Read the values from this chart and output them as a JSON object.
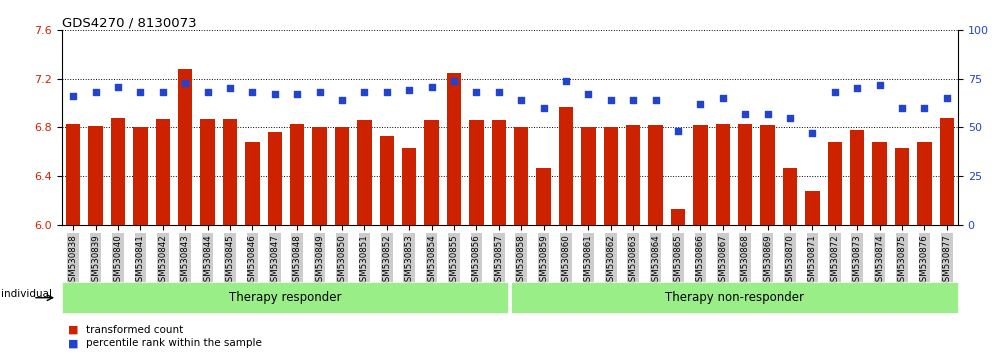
{
  "title": "GDS4270 / 8130073",
  "samples": [
    "GSM530838",
    "GSM530839",
    "GSM530840",
    "GSM530841",
    "GSM530842",
    "GSM530843",
    "GSM530844",
    "GSM530845",
    "GSM530846",
    "GSM530847",
    "GSM530848",
    "GSM530849",
    "GSM530850",
    "GSM530851",
    "GSM530852",
    "GSM530853",
    "GSM530854",
    "GSM530855",
    "GSM530856",
    "GSM530857",
    "GSM530858",
    "GSM530859",
    "GSM530860",
    "GSM530861",
    "GSM530862",
    "GSM530863",
    "GSM530864",
    "GSM530865",
    "GSM530866",
    "GSM530867",
    "GSM530868",
    "GSM530869",
    "GSM530870",
    "GSM530871",
    "GSM530872",
    "GSM530873",
    "GSM530874",
    "GSM530875",
    "GSM530876",
    "GSM530877"
  ],
  "bar_values": [
    6.83,
    6.81,
    6.88,
    6.8,
    6.87,
    7.28,
    6.87,
    6.87,
    6.68,
    6.76,
    6.83,
    6.8,
    6.8,
    6.86,
    6.73,
    6.63,
    6.86,
    7.25,
    6.86,
    6.86,
    6.8,
    6.47,
    6.97,
    6.8,
    6.8,
    6.82,
    6.82,
    6.13,
    6.82,
    6.83,
    6.83,
    6.82,
    6.47,
    6.28,
    6.68,
    6.78,
    6.68,
    6.63,
    6.68,
    6.88
  ],
  "dot_values": [
    66,
    68,
    71,
    68,
    68,
    73,
    68,
    70,
    68,
    67,
    67,
    68,
    64,
    68,
    68,
    69,
    71,
    74,
    68,
    68,
    64,
    60,
    74,
    67,
    64,
    64,
    64,
    48,
    62,
    65,
    57,
    57,
    55,
    47,
    68,
    70,
    72,
    60,
    60,
    65
  ],
  "group1_label": "Therapy responder",
  "group2_label": "Therapy non-responder",
  "group1_count": 20,
  "group2_count": 20,
  "ylim_left": [
    6.0,
    7.6
  ],
  "ylim_right": [
    0,
    100
  ],
  "yticks_left": [
    6.0,
    6.4,
    6.8,
    7.2,
    7.6
  ],
  "yticks_right": [
    0,
    25,
    50,
    75,
    100
  ],
  "bar_color": "#cc2200",
  "dot_color": "#2244cc",
  "group_bg_color": "#99ee88",
  "tick_bg_color": "#cccccc",
  "legend_bar_label": "transformed count",
  "legend_dot_label": "percentile rank within the sample",
  "individual_label": "individual"
}
